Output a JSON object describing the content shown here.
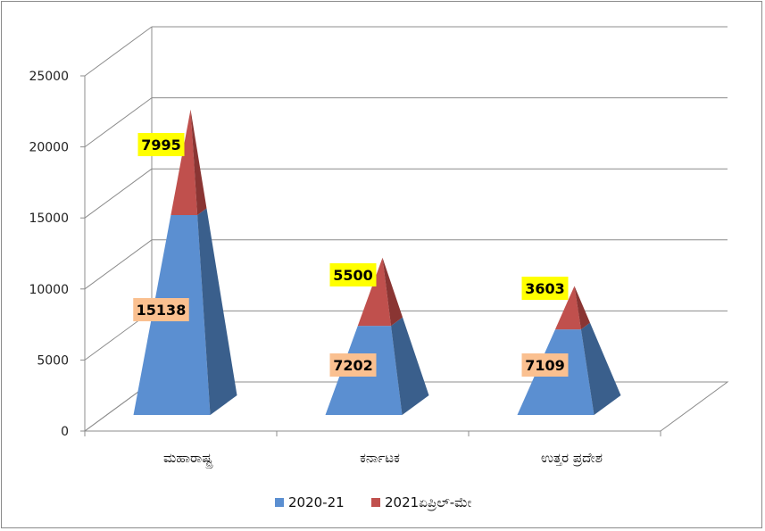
{
  "chart_data": {
    "type": "bar",
    "style": "3d-pyramid-stacked",
    "title": "",
    "xlabel": "",
    "ylabel": "",
    "ylim": [
      0,
      25000
    ],
    "yticks": [
      0,
      5000,
      10000,
      15000,
      20000,
      25000
    ],
    "grid": true,
    "legend_position": "bottom",
    "categories": [
      "ಮಹಾರಾಷ್ಟ್ರ",
      "ಕರ್ನಾಟಕ",
      "ಉತ್ತರ ಪ್ರದೇಶ"
    ],
    "series": [
      {
        "name": "2020-21",
        "values": [
          15138,
          7202,
          7109
        ],
        "color": "#5b8fd1",
        "label_bg": "#fac090"
      },
      {
        "name": "2021ಏಪ್ರಿಲ್-ಮೇ",
        "values": [
          7995,
          5500,
          3603
        ],
        "color": "#c0504d",
        "label_bg": "#ffff00"
      }
    ]
  }
}
